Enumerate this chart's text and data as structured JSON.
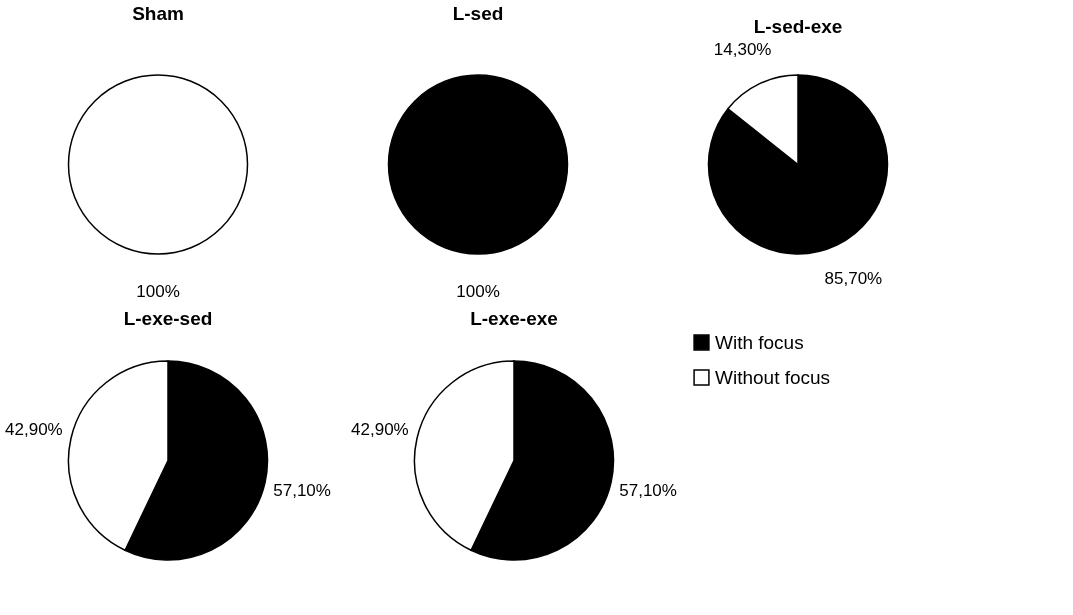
{
  "chart_data": [
    {
      "type": "pie",
      "title": "Sham",
      "categories": [
        "With focus",
        "Without focus"
      ],
      "values": [
        0,
        100
      ],
      "colors": [
        "#000000",
        "#ffffff"
      ],
      "value_labels": [
        null,
        "100%"
      ],
      "legend": "right"
    },
    {
      "type": "pie",
      "title": "L-sed",
      "categories": [
        null,
        null
      ],
      "values": [
        100,
        0
      ],
      "colors": [
        "#000000",
        "#ffffff"
      ],
      "value_labels": [
        "100%",
        null
      ]
    },
    {
      "type": "pie",
      "title": "L-sed-exe",
      "categories": [
        null,
        null
      ],
      "values": [
        85.7,
        14.3
      ],
      "colors": [
        "#000000",
        "#ffffff"
      ],
      "value_labels": [
        "85,70%",
        "14,30%"
      ]
    },
    {
      "type": "pie",
      "title": "L-exe-sed",
      "categories": [
        null,
        null
      ],
      "values": [
        57.1,
        42.9
      ],
      "colors": [
        "#000000",
        "#ffffff"
      ],
      "value_labels": [
        "57,10%",
        "42,90%"
      ]
    },
    {
      "type": "pie",
      "title": "L-exe-exe",
      "categories": [
        null,
        null
      ],
      "values": [
        57.1,
        42.9
      ],
      "colors": [
        "#000000",
        "#ffffff"
      ],
      "value_labels": [
        "57,10%",
        "42,90%"
      ]
    }
  ]
}
